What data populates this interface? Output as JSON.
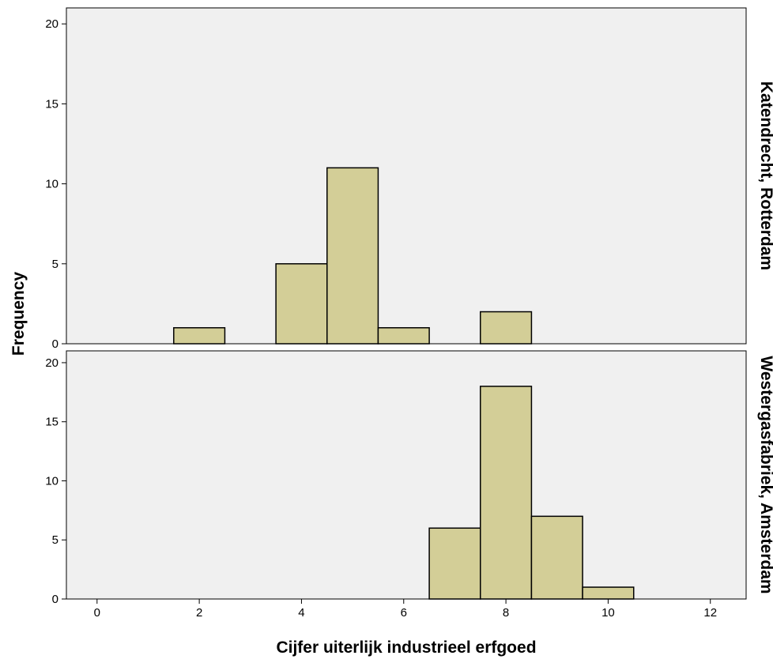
{
  "chart_data": {
    "type": "bar",
    "subtype": "histogram-panels",
    "xlabel": "Cijfer uiterlijk industrieel erfgoed",
    "ylabel": "Frequency",
    "xlim": [
      -0.6,
      12.7
    ],
    "x_ticks": [
      "0",
      "2",
      "4",
      "6",
      "8",
      "10",
      "12"
    ],
    "y_ticks": [
      "0",
      "5",
      "10",
      "15",
      "20"
    ],
    "ylim": [
      0,
      21
    ],
    "bin_width": 1,
    "grid": false,
    "colors": {
      "plot_background": "#f0f0f0",
      "bar_fill": "#d3ce97",
      "bar_stroke": "#000000"
    },
    "panels": [
      {
        "name": "Katendrecht, Rotterdam",
        "bins": [
          {
            "x": 2,
            "value": 1
          },
          {
            "x": 4,
            "value": 5
          },
          {
            "x": 5,
            "value": 11
          },
          {
            "x": 6,
            "value": 1
          },
          {
            "x": 8,
            "value": 2
          }
        ]
      },
      {
        "name": "Westergasfabriek, Amsterdam",
        "bins": [
          {
            "x": 7,
            "value": 6
          },
          {
            "x": 8,
            "value": 18
          },
          {
            "x": 9,
            "value": 7
          },
          {
            "x": 10,
            "value": 1
          }
        ]
      }
    ]
  }
}
